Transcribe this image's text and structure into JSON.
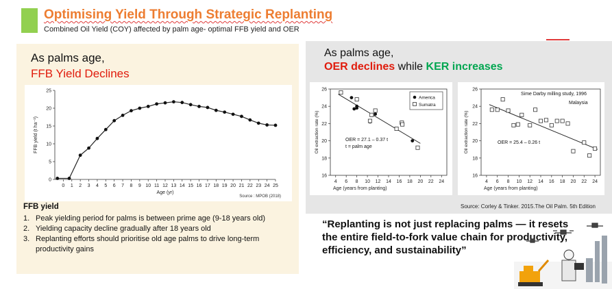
{
  "header": {
    "title": "Optimising Yield Through Strategic Replanting",
    "subtitle": "Combined Oil Yield (COY) affected by palm age- optimal FFB yield and OER"
  },
  "left_panel": {
    "heading_line1": "As palms age,",
    "heading_line2": "FFB Yield Declines",
    "source": "Source : MPOB (2018)",
    "ffb_title": "FFB yield",
    "points": [
      {
        "num": "1.",
        "text": "Peak yielding period for palms is between prime age (9-18 years old)"
      },
      {
        "num": "2.",
        "text": "Yielding capacity decline gradually after 18 years old"
      },
      {
        "num": "3.",
        "text": "Replanting efforts should prioritise old age palms to drive long-term productivity gains"
      }
    ]
  },
  "right_panel": {
    "heading_line1": "As palms age,",
    "heading_oer": "OER declines",
    "heading_mid": " while ",
    "heading_ker": "KER increases",
    "source": "Source: Corley & Tinker. 2015.The Oil Palm. 5th Edition"
  },
  "quote": "“Replanting is not just replacing palms — it resets the entire field-to-fork value chain for productivity, efficiency, and sustainability”",
  "chart_data": [
    {
      "type": "line",
      "title": "",
      "xlabel": "Age (yr)",
      "ylabel": "FFB yield (t ha⁻¹)",
      "xlim": [
        -1,
        25
      ],
      "ylim": [
        0,
        25
      ],
      "xticks": [
        0,
        1,
        2,
        3,
        4,
        5,
        6,
        7,
        8,
        9,
        10,
        11,
        12,
        13,
        14,
        15,
        16,
        17,
        18,
        19,
        20,
        21,
        22,
        23,
        24,
        25
      ],
      "yticks": [
        0,
        5,
        10,
        15,
        20,
        25
      ],
      "x": [
        -0.7,
        0.7,
        2,
        3,
        4,
        5,
        6,
        7,
        8,
        9,
        10,
        11,
        12,
        13,
        14,
        15,
        16,
        17,
        18,
        19,
        20,
        21,
        22,
        23,
        24,
        25
      ],
      "y": [
        0.3,
        0.3,
        6.8,
        8.8,
        11.5,
        14,
        16.5,
        18,
        19.3,
        20,
        20.5,
        21.2,
        21.5,
        21.8,
        21.6,
        21,
        20.5,
        20.2,
        19.4,
        18.9,
        18.3,
        17.7,
        16.7,
        15.8,
        15.3,
        15.2
      ]
    },
    {
      "type": "scatter",
      "xlabel": "Age (years from planting)",
      "ylabel": "Oil extraction rate (%)",
      "xlim": [
        3,
        25
      ],
      "ylim": [
        16,
        26
      ],
      "xticks": [
        4,
        6,
        8,
        10,
        12,
        14,
        16,
        18,
        20,
        22,
        24
      ],
      "yticks": [
        16,
        18,
        20,
        22,
        24,
        26
      ],
      "annotation": "OER = 27.1 – 0.37 t",
      "annotation2": "t = palm age",
      "legend": [
        "America",
        "Sumatra"
      ],
      "series": [
        {
          "name": "America",
          "x": [
            7,
            7.5,
            8,
            8,
            10.5,
            11.5,
            18.5
          ],
          "y": [
            25,
            23.7,
            24,
            23.8,
            22.2,
            23.1,
            20
          ]
        },
        {
          "name": "Sumatra",
          "x": [
            5,
            8,
            10.5,
            10.8,
            11.5,
            15.5,
            16.5,
            16.6,
            19.5
          ],
          "y": [
            25.6,
            24.8,
            22.3,
            23,
            23.5,
            21.4,
            22.1,
            21.9,
            19.2
          ]
        }
      ],
      "trend": {
        "x": [
          4.5,
          20
        ],
        "y": [
          25.4,
          19.7
        ]
      }
    },
    {
      "type": "scatter",
      "title": "Sime Darby milling study, 1996",
      "subtitle": "Malaysia",
      "xlabel": "Age (years from planting)",
      "ylabel": "Oil extraction rate (%)",
      "xlim": [
        3,
        25
      ],
      "ylim": [
        16,
        26
      ],
      "xticks": [
        4,
        6,
        8,
        10,
        12,
        14,
        16,
        18,
        20,
        22,
        24
      ],
      "yticks": [
        16,
        18,
        20,
        22,
        24,
        26
      ],
      "annotation": "OER = 25.4 – 0.26 t",
      "series": [
        {
          "name": "Sime Darby",
          "x": [
            5,
            6,
            7,
            8,
            9,
            9.8,
            10.5,
            12,
            13,
            14,
            15,
            16,
            17,
            18,
            19,
            20,
            22,
            23,
            24
          ],
          "y": [
            23.6,
            23.6,
            24.8,
            23.5,
            21.8,
            21.9,
            23,
            21.8,
            23.6,
            22.3,
            22.4,
            21.8,
            22.3,
            22.3,
            22,
            18.8,
            19.8,
            18.3,
            19.1
          ]
        }
      ],
      "trend": {
        "x": [
          4.5,
          24.5
        ],
        "y": [
          24.2,
          19.0
        ]
      }
    }
  ]
}
